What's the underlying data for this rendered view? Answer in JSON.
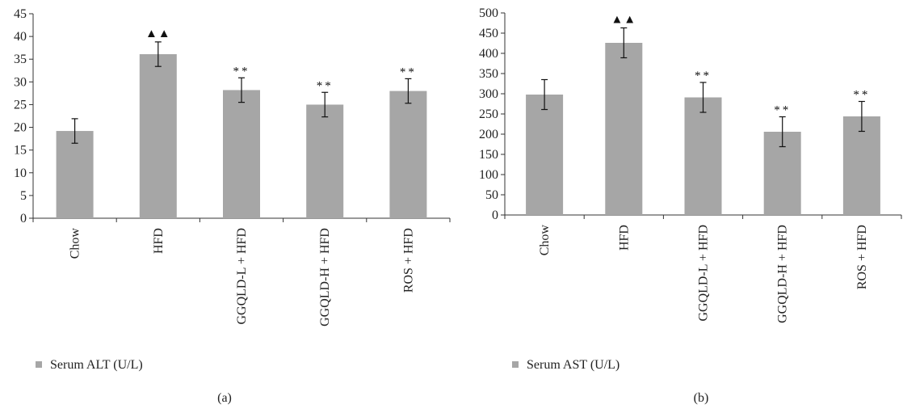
{
  "chart_data": [
    {
      "type": "bar",
      "panel_label": "(a)",
      "categories": [
        "Chow",
        "HFD",
        "GGQLD-L + HFD",
        "GGQLD-H + HFD",
        "ROS + HFD"
      ],
      "series": [
        {
          "name": "Serum ALT (U/L)",
          "values": [
            19.2,
            36.1,
            28.2,
            25.0,
            28.0
          ],
          "errors": [
            2.7,
            2.7,
            2.7,
            2.7,
            2.7
          ],
          "markers": [
            "",
            "▲▲",
            "**",
            "**",
            "**"
          ]
        }
      ],
      "ylim": [
        0,
        45
      ],
      "yticks": [
        0,
        5,
        10,
        15,
        20,
        25,
        30,
        35,
        40,
        45
      ],
      "grid": false,
      "legend": "bottom-left",
      "color": "#a6a6a6"
    },
    {
      "type": "bar",
      "panel_label": "(b)",
      "categories": [
        "Chow",
        "HFD",
        "GGQLD-L + HFD",
        "GGQLD-H + HFD",
        "ROS + HFD"
      ],
      "series": [
        {
          "name": "Serum AST (U/L)",
          "values": [
            298,
            426,
            291,
            206,
            244
          ],
          "errors": [
            37,
            37,
            37,
            37,
            37
          ],
          "markers": [
            "",
            "▲▲",
            "**",
            "**",
            "**"
          ]
        }
      ],
      "ylim": [
        0,
        500
      ],
      "yticks": [
        0,
        50,
        100,
        150,
        200,
        250,
        300,
        350,
        400,
        450,
        500
      ],
      "grid": false,
      "legend": "bottom-left",
      "color": "#a6a6a6"
    }
  ]
}
